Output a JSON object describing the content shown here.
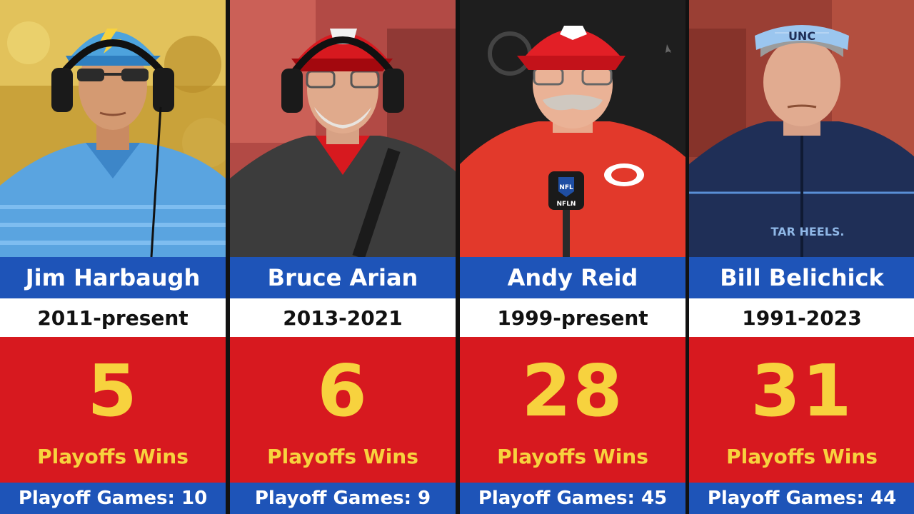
{
  "coaches": [
    {
      "name": "Jim Harbaugh",
      "years": "2011-present",
      "playoff_wins": "5",
      "wins_label": "Playoffs Wins",
      "playoff_games_text": "Playoff Games: 10",
      "hat_logo": "bolt-icon"
    },
    {
      "name": "Bruce Arian",
      "years": "2013-2021",
      "playoff_wins": "6",
      "wins_label": "Playoffs Wins",
      "playoff_games_text": "Playoff Games: 9",
      "hat_logo": "buccaneers-flag-icon"
    },
    {
      "name": "Andy Reid",
      "years": "1999-present",
      "playoff_wins": "28",
      "wins_label": "Playoffs Wins",
      "playoff_games_text": "Playoff Games: 45",
      "hat_logo": "chiefs-arrowhead-icon"
    },
    {
      "name": "Bill Belichick",
      "years": "1991-2023",
      "playoff_wins": "31",
      "wins_label": "Playoffs Wins",
      "playoff_games_text": "Playoff Games: 44",
      "hat_logo": "unc-visor-icon"
    }
  ],
  "photo_text": {
    "unc_visor": "UNC",
    "tar_heels": "TAR HEELS.",
    "mic_logo": "NFL",
    "mic_network": "NFLN"
  },
  "colors": {
    "blue_bar": "#1e54b8",
    "red_panel": "#d7191f",
    "gold_text": "#f7d23e",
    "white_bar": "#ffffff"
  }
}
